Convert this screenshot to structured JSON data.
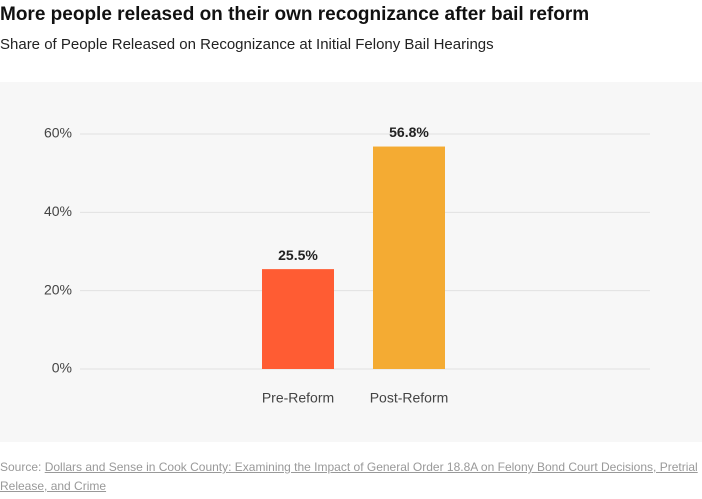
{
  "chart_data": {
    "type": "bar",
    "title": "More people released on their own recognizance after bail reform",
    "subtitle": "Share of People Released on Recognizance at Initial Felony Bail Hearings",
    "categories": [
      "Pre-Reform",
      "Post-Reform"
    ],
    "values": [
      25.5,
      56.8
    ],
    "value_labels": [
      "25.5%",
      "56.8%"
    ],
    "colors": [
      "#ff5c33",
      "#f4ab33"
    ],
    "ylim": [
      0,
      60
    ],
    "yticks": [
      {
        "value": 0,
        "label": "0%"
      },
      {
        "value": 20,
        "label": "20%"
      },
      {
        "value": 40,
        "label": "40%"
      },
      {
        "value": 60,
        "label": "60%"
      }
    ],
    "grid": true,
    "source_label": "Source:",
    "source_text": "Dollars and Sense in Cook County: Examining the Impact of General Order 18.8A on Felony Bond Court Decisions, Pretrial Release, and Crime"
  }
}
